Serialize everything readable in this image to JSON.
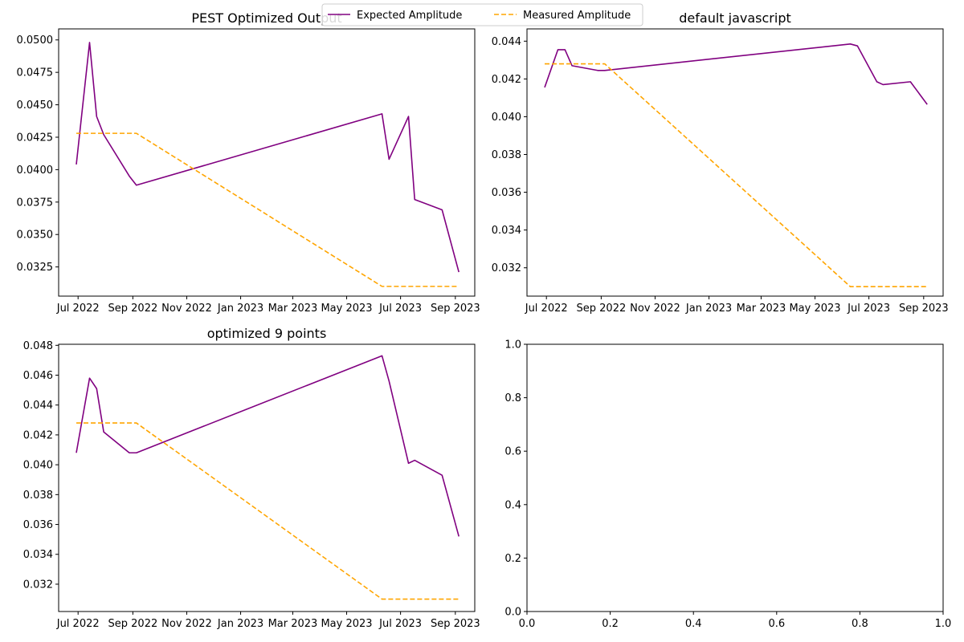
{
  "legend": {
    "entries": [
      {
        "label": "Expected Amplitude",
        "color": "#800080",
        "style": "solid"
      },
      {
        "label": "Measured Amplitude",
        "color": "#FFA500",
        "style": "dashed"
      }
    ],
    "placement": "top-center"
  },
  "chart_data": [
    {
      "type": "line",
      "title": "PEST Optimized Output",
      "xlabel": "",
      "ylabel": "",
      "x_type": "date",
      "xlim": [
        "2022-06-09",
        "2023-09-23"
      ],
      "ylim": [
        0.03025,
        0.05085
      ],
      "x_ticks": [
        {
          "date": "2022-07-01",
          "label": "Jul 2022"
        },
        {
          "date": "2022-09-01",
          "label": "Sep 2022"
        },
        {
          "date": "2022-11-01",
          "label": "Nov 2022"
        },
        {
          "date": "2023-01-01",
          "label": "Jan 2023"
        },
        {
          "date": "2023-03-01",
          "label": "Mar 2023"
        },
        {
          "date": "2023-05-01",
          "label": "May 2023"
        },
        {
          "date": "2023-07-01",
          "label": "Jul 2023"
        },
        {
          "date": "2023-09-01",
          "label": "Sep 2023"
        }
      ],
      "y_ticks": [
        {
          "value": 0.0325,
          "label": "0.0325"
        },
        {
          "value": 0.035,
          "label": "0.0350"
        },
        {
          "value": 0.0375,
          "label": "0.0375"
        },
        {
          "value": 0.04,
          "label": "0.0400"
        },
        {
          "value": 0.0425,
          "label": "0.0425"
        },
        {
          "value": 0.045,
          "label": "0.0450"
        },
        {
          "value": 0.0475,
          "label": "0.0475"
        },
        {
          "value": 0.05,
          "label": "0.0500"
        }
      ],
      "grid": false,
      "series": [
        {
          "name": "Expected Amplitude",
          "color": "#800080",
          "dash": false,
          "points": [
            {
              "x": "2022-06-29",
              "y": 0.0404
            },
            {
              "x": "2022-07-14",
              "y": 0.0498
            },
            {
              "x": "2022-07-22",
              "y": 0.0441
            },
            {
              "x": "2022-07-30",
              "y": 0.0427
            },
            {
              "x": "2022-08-28",
              "y": 0.0395
            },
            {
              "x": "2022-09-05",
              "y": 0.0388
            },
            {
              "x": "2023-06-10",
              "y": 0.0443
            },
            {
              "x": "2023-06-18",
              "y": 0.0408
            },
            {
              "x": "2023-07-10",
              "y": 0.0441
            },
            {
              "x": "2023-07-17",
              "y": 0.0377
            },
            {
              "x": "2023-08-17",
              "y": 0.0369
            },
            {
              "x": "2023-09-05",
              "y": 0.0321
            }
          ]
        },
        {
          "name": "Measured Amplitude",
          "color": "#FFA500",
          "dash": true,
          "points": [
            {
              "x": "2022-06-29",
              "y": 0.0428
            },
            {
              "x": "2022-09-05",
              "y": 0.0428
            },
            {
              "x": "2023-06-10",
              "y": 0.031
            },
            {
              "x": "2023-09-05",
              "y": 0.031
            }
          ]
        }
      ]
    },
    {
      "type": "line",
      "title": "default javascript",
      "xlabel": "",
      "ylabel": "",
      "x_type": "date",
      "xlim": [
        "2022-06-09",
        "2023-09-23"
      ],
      "ylim": [
        0.0305,
        0.04465
      ],
      "x_ticks": [
        {
          "date": "2022-07-01",
          "label": "Jul 2022"
        },
        {
          "date": "2022-09-01",
          "label": "Sep 2022"
        },
        {
          "date": "2022-11-01",
          "label": "Nov 2022"
        },
        {
          "date": "2023-01-01",
          "label": "Jan 2023"
        },
        {
          "date": "2023-03-01",
          "label": "Mar 2023"
        },
        {
          "date": "2023-05-01",
          "label": "May 2023"
        },
        {
          "date": "2023-07-01",
          "label": "Jul 2023"
        },
        {
          "date": "2023-09-01",
          "label": "Sep 2023"
        }
      ],
      "y_ticks": [
        {
          "value": 0.032,
          "label": "0.032"
        },
        {
          "value": 0.034,
          "label": "0.034"
        },
        {
          "value": 0.036,
          "label": "0.036"
        },
        {
          "value": 0.038,
          "label": "0.038"
        },
        {
          "value": 0.04,
          "label": "0.040"
        },
        {
          "value": 0.042,
          "label": "0.042"
        },
        {
          "value": 0.044,
          "label": "0.044"
        }
      ],
      "grid": false,
      "series": [
        {
          "name": "Expected Amplitude",
          "color": "#800080",
          "dash": false,
          "points": [
            {
              "x": "2022-06-29",
              "y": 0.04155
            },
            {
              "x": "2022-07-14",
              "y": 0.04355
            },
            {
              "x": "2022-07-22",
              "y": 0.04355
            },
            {
              "x": "2022-07-30",
              "y": 0.0427
            },
            {
              "x": "2022-08-28",
              "y": 0.04245
            },
            {
              "x": "2022-09-05",
              "y": 0.04245
            },
            {
              "x": "2023-06-10",
              "y": 0.04385
            },
            {
              "x": "2023-06-18",
              "y": 0.04375
            },
            {
              "x": "2023-07-10",
              "y": 0.04185
            },
            {
              "x": "2023-07-17",
              "y": 0.0417
            },
            {
              "x": "2023-08-17",
              "y": 0.04185
            },
            {
              "x": "2023-09-05",
              "y": 0.04065
            }
          ]
        },
        {
          "name": "Measured Amplitude",
          "color": "#FFA500",
          "dash": true,
          "points": [
            {
              "x": "2022-06-29",
              "y": 0.0428
            },
            {
              "x": "2022-09-05",
              "y": 0.0428
            },
            {
              "x": "2023-06-10",
              "y": 0.031
            },
            {
              "x": "2023-09-05",
              "y": 0.031
            }
          ]
        }
      ]
    },
    {
      "type": "line",
      "title": "optimized 9 points",
      "xlabel": "",
      "ylabel": "",
      "x_type": "date",
      "xlim": [
        "2022-06-09",
        "2023-09-23"
      ],
      "ylim": [
        0.03017,
        0.04807
      ],
      "x_ticks": [
        {
          "date": "2022-07-01",
          "label": "Jul 2022"
        },
        {
          "date": "2022-09-01",
          "label": "Sep 2022"
        },
        {
          "date": "2022-11-01",
          "label": "Nov 2022"
        },
        {
          "date": "2023-01-01",
          "label": "Jan 2023"
        },
        {
          "date": "2023-03-01",
          "label": "Mar 2023"
        },
        {
          "date": "2023-05-01",
          "label": "May 2023"
        },
        {
          "date": "2023-07-01",
          "label": "Jul 2023"
        },
        {
          "date": "2023-09-01",
          "label": "Sep 2023"
        }
      ],
      "y_ticks": [
        {
          "value": 0.032,
          "label": "0.032"
        },
        {
          "value": 0.034,
          "label": "0.034"
        },
        {
          "value": 0.036,
          "label": "0.036"
        },
        {
          "value": 0.038,
          "label": "0.038"
        },
        {
          "value": 0.04,
          "label": "0.040"
        },
        {
          "value": 0.042,
          "label": "0.042"
        },
        {
          "value": 0.044,
          "label": "0.044"
        },
        {
          "value": 0.046,
          "label": "0.046"
        },
        {
          "value": 0.048,
          "label": "0.048"
        }
      ],
      "grid": false,
      "series": [
        {
          "name": "Expected Amplitude",
          "color": "#800080",
          "dash": false,
          "points": [
            {
              "x": "2022-06-29",
              "y": 0.0408
            },
            {
              "x": "2022-07-14",
              "y": 0.0458
            },
            {
              "x": "2022-07-22",
              "y": 0.0451
            },
            {
              "x": "2022-07-30",
              "y": 0.0422
            },
            {
              "x": "2022-08-28",
              "y": 0.0408
            },
            {
              "x": "2022-09-05",
              "y": 0.0408
            },
            {
              "x": "2023-06-10",
              "y": 0.0473
            },
            {
              "x": "2023-06-18",
              "y": 0.0456
            },
            {
              "x": "2023-07-10",
              "y": 0.0401
            },
            {
              "x": "2023-07-17",
              "y": 0.0403
            },
            {
              "x": "2023-08-17",
              "y": 0.0393
            },
            {
              "x": "2023-09-05",
              "y": 0.0352
            }
          ]
        },
        {
          "name": "Measured Amplitude",
          "color": "#FFA500",
          "dash": true,
          "points": [
            {
              "x": "2022-06-29",
              "y": 0.0428
            },
            {
              "x": "2022-09-05",
              "y": 0.0428
            },
            {
              "x": "2023-06-10",
              "y": 0.031
            },
            {
              "x": "2023-09-05",
              "y": 0.031
            }
          ]
        }
      ]
    },
    {
      "type": "line",
      "title": "",
      "xlabel": "",
      "ylabel": "",
      "x_type": "number",
      "xlim": [
        0,
        1
      ],
      "ylim": [
        0,
        1
      ],
      "x_ticks": [
        {
          "value": 0.0,
          "label": "0.0"
        },
        {
          "value": 0.2,
          "label": "0.2"
        },
        {
          "value": 0.4,
          "label": "0.4"
        },
        {
          "value": 0.6,
          "label": "0.6"
        },
        {
          "value": 0.8,
          "label": "0.8"
        },
        {
          "value": 1.0,
          "label": "1.0"
        }
      ],
      "y_ticks": [
        {
          "value": 0.0,
          "label": "0.0"
        },
        {
          "value": 0.2,
          "label": "0.2"
        },
        {
          "value": 0.4,
          "label": "0.4"
        },
        {
          "value": 0.6,
          "label": "0.6"
        },
        {
          "value": 0.8,
          "label": "0.8"
        },
        {
          "value": 1.0,
          "label": "1.0"
        }
      ],
      "grid": false,
      "series": []
    }
  ]
}
